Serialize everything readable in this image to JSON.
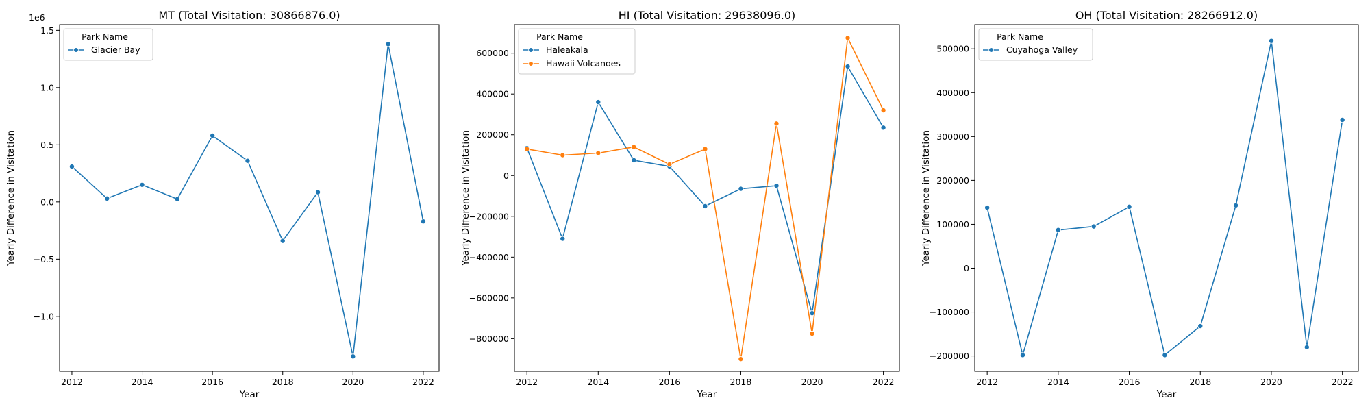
{
  "chart_data": [
    {
      "type": "line",
      "title": "MT (Total Visitation: 30866876.0)",
      "xlabel": "Year",
      "ylabel": "Yearly Difference in Visitation",
      "y_offset_label": "1e6",
      "xlim": [
        2011.65,
        2022.45
      ],
      "ylim": [
        -1.48,
        1.55
      ],
      "x_ticks": [
        2012,
        2014,
        2016,
        2018,
        2020,
        2022
      ],
      "x_tick_labels": [
        "2012",
        "2014",
        "2016",
        "2018",
        "2020",
        "2022"
      ],
      "y_ticks": [
        -1.0,
        -0.5,
        0.0,
        0.5,
        1.0,
        1.5
      ],
      "y_tick_labels": [
        "−1.0",
        "−0.5",
        "0.0",
        "0.5",
        "1.0",
        "1.5"
      ],
      "legend_title": "Park Name",
      "legend_position": "top-left",
      "grid": false,
      "series": [
        {
          "name": "Glacier Bay",
          "color": "#1f77b4",
          "x": [
            2012,
            2013,
            2014,
            2015,
            2016,
            2017,
            2018,
            2019,
            2020,
            2021,
            2022
          ],
          "y": [
            0.31,
            0.03,
            0.15,
            0.025,
            0.58,
            0.36,
            -0.34,
            0.085,
            -1.35,
            1.38,
            -0.17
          ]
        }
      ]
    },
    {
      "type": "line",
      "title": "HI (Total Visitation: 29638096.0)",
      "xlabel": "Year",
      "ylabel": "Yearly Difference in Visitation",
      "xlim": [
        2011.65,
        2022.45
      ],
      "ylim": [
        -960000,
        740000
      ],
      "x_ticks": [
        2012,
        2014,
        2016,
        2018,
        2020,
        2022
      ],
      "x_tick_labels": [
        "2012",
        "2014",
        "2016",
        "2018",
        "2020",
        "2022"
      ],
      "y_ticks": [
        -800000,
        -600000,
        -400000,
        -200000,
        0,
        200000,
        400000,
        600000
      ],
      "y_tick_labels": [
        "−800000",
        "−600000",
        "−400000",
        "−200000",
        "0",
        "200000",
        "400000",
        "600000"
      ],
      "legend_title": "Park Name",
      "legend_position": "top-left",
      "grid": false,
      "series": [
        {
          "name": "Haleakala",
          "color": "#1f77b4",
          "x": [
            2012,
            2013,
            2014,
            2015,
            2016,
            2017,
            2018,
            2019,
            2020,
            2021,
            2022
          ],
          "y": [
            135000,
            -310000,
            360000,
            75000,
            45000,
            -150000,
            -65000,
            -50000,
            -675000,
            535000,
            235000
          ]
        },
        {
          "name": "Hawaii Volcanoes",
          "color": "#ff7f0e",
          "x": [
            2012,
            2013,
            2014,
            2015,
            2016,
            2017,
            2018,
            2019,
            2020,
            2021,
            2022
          ],
          "y": [
            130000,
            100000,
            110000,
            140000,
            55000,
            130000,
            -900000,
            255000,
            -775000,
            675000,
            320000
          ]
        }
      ]
    },
    {
      "type": "line",
      "title": "OH (Total Visitation: 28266912.0)",
      "xlabel": "Year",
      "ylabel": "Yearly Difference in Visitation",
      "xlim": [
        2011.65,
        2022.45
      ],
      "ylim": [
        -235000,
        555000
      ],
      "x_ticks": [
        2012,
        2014,
        2016,
        2018,
        2020,
        2022
      ],
      "x_tick_labels": [
        "2012",
        "2014",
        "2016",
        "2018",
        "2020",
        "2022"
      ],
      "y_ticks": [
        -200000,
        -100000,
        0,
        100000,
        200000,
        300000,
        400000,
        500000
      ],
      "y_tick_labels": [
        "−200000",
        "−100000",
        "0",
        "100000",
        "200000",
        "300000",
        "400000",
        "500000"
      ],
      "legend_title": "Park Name",
      "legend_position": "top-left",
      "grid": false,
      "series": [
        {
          "name": "Cuyahoga Valley",
          "color": "#1f77b4",
          "x": [
            2012,
            2013,
            2014,
            2015,
            2016,
            2017,
            2018,
            2019,
            2020,
            2021,
            2022
          ],
          "y": [
            138000,
            -198000,
            87000,
            95000,
            140000,
            -198000,
            -132000,
            143000,
            518000,
            -180000,
            338000
          ]
        }
      ]
    }
  ]
}
